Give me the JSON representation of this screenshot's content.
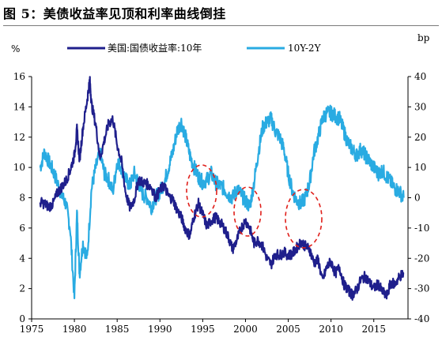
{
  "title": "图 5：美债收益率见顶和利率曲线倒挂",
  "chart_data": {
    "type": "line",
    "left_unit": "%",
    "right_unit": "bp",
    "x_ticks": [
      "1975",
      "1980",
      "1985",
      "1990",
      "1995",
      "2000",
      "2005",
      "2010",
      "2015"
    ],
    "y_left_ticks": [
      "0",
      "2",
      "4",
      "6",
      "8",
      "10",
      "12",
      "14",
      "16"
    ],
    "y_right_ticks": [
      "-40",
      "-30",
      "-20",
      "-10",
      "0",
      "10",
      "20",
      "30",
      "40"
    ],
    "xlim": [
      1975,
      2019
    ],
    "ylim_left": [
      0,
      16
    ],
    "ylim_right": [
      -40,
      40
    ],
    "legend_position": "top",
    "series": [
      {
        "name": "美国:国债收益率:10年",
        "axis": "left",
        "color": "#1f1f8c",
        "x": [
          1976,
          1976.5,
          1977,
          1977.5,
          1978,
          1978.5,
          1979,
          1979.5,
          1980,
          1980.3,
          1980.6,
          1981,
          1981.5,
          1981.8,
          1982,
          1982.5,
          1983,
          1983.5,
          1984,
          1984.5,
          1985,
          1985.5,
          1986,
          1986.5,
          1987,
          1987.5,
          1988,
          1988.5,
          1989,
          1989.5,
          1990,
          1990.5,
          1991,
          1991.5,
          1992,
          1992.5,
          1993,
          1993.5,
          1994,
          1994.5,
          1995,
          1995.5,
          1996,
          1996.5,
          1997,
          1997.5,
          1998,
          1998.5,
          1999,
          1999.5,
          2000,
          2000.5,
          2001,
          2001.5,
          2002,
          2002.5,
          2003,
          2003.5,
          2004,
          2004.5,
          2005,
          2005.5,
          2006,
          2006.5,
          2007,
          2007.5,
          2008,
          2008.5,
          2009,
          2009.5,
          2010,
          2010.5,
          2011,
          2011.5,
          2012,
          2012.5,
          2013,
          2013.5,
          2014,
          2014.5,
          2015,
          2015.5,
          2016,
          2016.5,
          2017,
          2017.5,
          2018,
          2018.5
        ],
        "values": [
          7.7,
          7.6,
          7.4,
          7.6,
          8.3,
          8.7,
          9.1,
          9.8,
          10.8,
          12.5,
          10.5,
          12.6,
          14.5,
          15.8,
          14.2,
          12.8,
          10.6,
          11.8,
          12.9,
          13.2,
          11.5,
          10.4,
          8.3,
          7.3,
          7.9,
          9.2,
          9.0,
          8.9,
          8.7,
          8.0,
          8.5,
          8.8,
          8.1,
          7.9,
          7.2,
          6.7,
          5.9,
          5.5,
          6.8,
          7.6,
          6.9,
          6.1,
          6.5,
          6.7,
          6.4,
          6.0,
          5.4,
          4.6,
          5.2,
          6.0,
          6.5,
          6.0,
          5.0,
          5.2,
          4.8,
          4.0,
          3.6,
          4.3,
          4.2,
          4.4,
          4.2,
          4.3,
          4.7,
          5.1,
          4.8,
          4.6,
          3.7,
          3.9,
          2.5,
          3.4,
          3.8,
          3.0,
          3.4,
          2.3,
          1.9,
          1.6,
          1.9,
          2.6,
          2.8,
          2.4,
          2.0,
          2.3,
          1.8,
          1.5,
          2.4,
          2.3,
          2.8,
          3.0
        ]
      },
      {
        "name": "10Y-2Y",
        "axis": "right",
        "color": "#29abe2",
        "x": [
          1976,
          1976.5,
          1977,
          1977.5,
          1978,
          1978.5,
          1979,
          1979.5,
          1980,
          1980.3,
          1980.6,
          1981,
          1981.5,
          1982,
          1982.5,
          1983,
          1983.5,
          1984,
          1984.5,
          1985,
          1985.5,
          1986,
          1986.5,
          1987,
          1987.5,
          1988,
          1988.5,
          1989,
          1989.5,
          1990,
          1990.5,
          1991,
          1991.5,
          1992,
          1992.5,
          1993,
          1993.5,
          1994,
          1994.5,
          1995,
          1995.5,
          1996,
          1996.5,
          1997,
          1997.5,
          1998,
          1998.5,
          1999,
          1999.5,
          2000,
          2000.5,
          2001,
          2001.5,
          2002,
          2002.5,
          2003,
          2003.5,
          2004,
          2004.5,
          2005,
          2005.5,
          2006,
          2006.5,
          2007,
          2007.5,
          2008,
          2008.5,
          2009,
          2009.5,
          2010,
          2010.5,
          2011,
          2011.5,
          2012,
          2012.5,
          2013,
          2013.5,
          2014,
          2014.5,
          2015,
          2015.5,
          2016,
          2016.5,
          2017,
          2017.5,
          2018,
          2018.5
        ],
        "values": [
          10,
          15,
          12,
          9,
          5,
          1,
          -2,
          -10,
          -33,
          -5,
          -25,
          -15,
          -20,
          3,
          10,
          15,
          8,
          6,
          2,
          12,
          10,
          6,
          4,
          8,
          5,
          1,
          0,
          -3,
          0,
          2,
          5,
          10,
          15,
          22,
          25,
          20,
          14,
          10,
          7,
          5,
          6,
          8,
          5,
          4,
          3,
          1,
          0,
          3,
          1,
          -1,
          -3,
          5,
          15,
          23,
          25,
          26,
          22,
          20,
          16,
          8,
          2,
          -1,
          -2,
          0,
          5,
          15,
          20,
          26,
          28,
          28,
          27,
          26,
          22,
          18,
          16,
          14,
          16,
          14,
          12,
          10,
          8,
          9,
          7,
          5,
          3,
          2,
          0
        ]
      }
    ],
    "annotations": "dashed red ellipses marking inversion periods"
  }
}
